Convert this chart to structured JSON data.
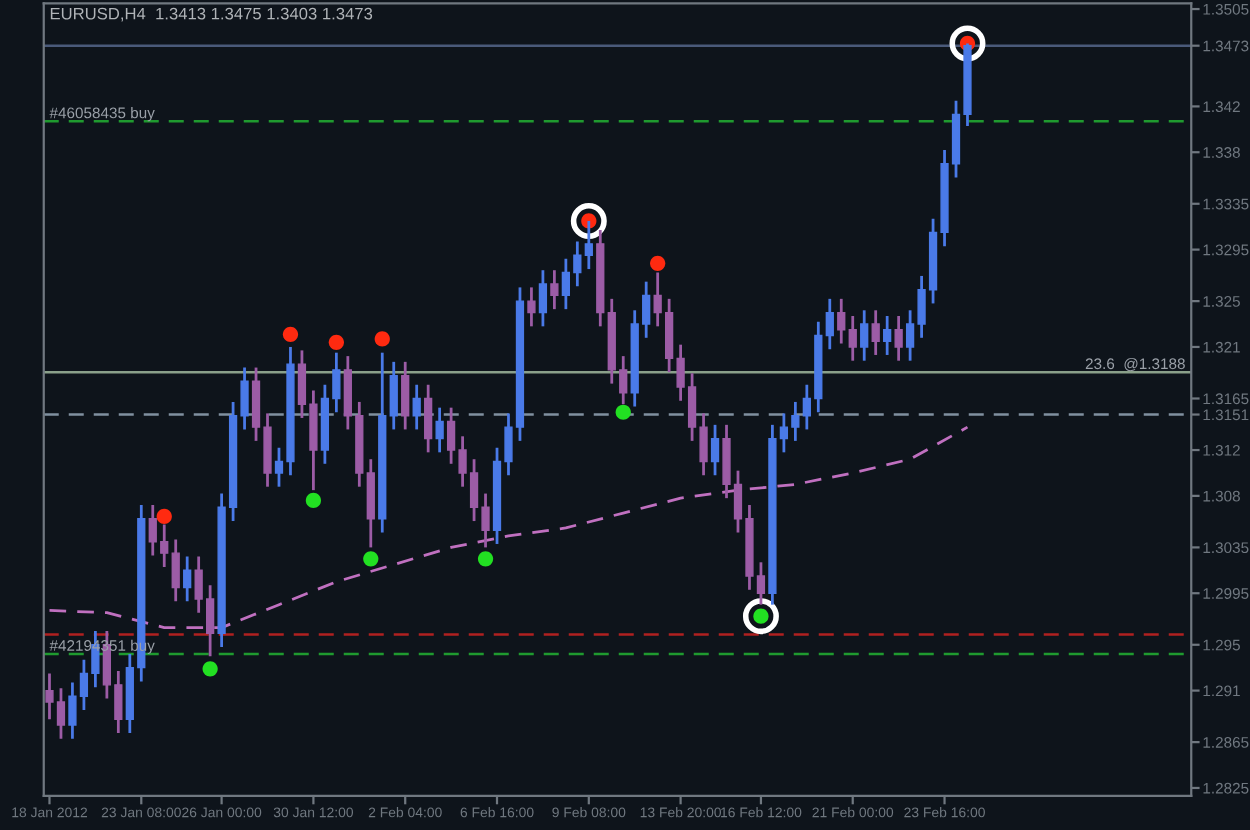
{
  "chart_data": {
    "type": "candlestick",
    "title": "EURUSD,H4  1.3413 1.3475 1.3403 1.3473",
    "categories": [
      "18 Jan 2012",
      null,
      null,
      null,
      null,
      null,
      null,
      null,
      "23 Jan 08:00",
      null,
      null,
      null,
      null,
      null,
      null,
      "26 Jan 00:00",
      null,
      null,
      null,
      null,
      null,
      null,
      null,
      "30 Jan 12:00",
      null,
      null,
      null,
      null,
      null,
      null,
      null,
      "2 Feb 04:00",
      null,
      null,
      null,
      null,
      null,
      null,
      null,
      "6 Feb 16:00",
      null,
      null,
      null,
      null,
      null,
      null,
      null,
      "9 Feb 08:00",
      null,
      null,
      null,
      null,
      null,
      null,
      null,
      "13 Feb 20:00",
      null,
      null,
      null,
      null,
      null,
      null,
      "16 Feb 12:00",
      null,
      null,
      null,
      null,
      null,
      null,
      null,
      "21 Feb 00:00",
      null,
      null,
      null,
      null,
      null,
      null,
      null,
      "23 Feb 16:00",
      null,
      null,
      null,
      null,
      null,
      null,
      null,
      null,
      null,
      null,
      null,
      null,
      null,
      null,
      null,
      null,
      null,
      null,
      null,
      null,
      null
    ],
    "ohlc": [
      [
        1.291,
        1.2925,
        1.2885,
        1.29
      ],
      [
        1.29,
        1.2912,
        1.2868,
        1.288
      ],
      [
        1.288,
        1.2917,
        1.2868,
        1.2905
      ],
      [
        1.2905,
        1.2937,
        1.2893,
        1.2925
      ],
      [
        1.2925,
        1.2962,
        1.2913,
        1.295
      ],
      [
        1.295,
        1.2962,
        1.2903,
        1.2915
      ],
      [
        1.2915,
        1.2927,
        1.2873,
        1.2885
      ],
      [
        1.2885,
        1.2942,
        1.2873,
        1.293
      ],
      [
        1.293,
        1.3072,
        1.2918,
        1.306
      ],
      [
        1.306,
        1.3072,
        1.3028,
        1.304
      ],
      [
        1.304,
        1.3055,
        1.3018,
        1.303
      ],
      [
        1.303,
        1.3042,
        1.2988,
        1.3
      ],
      [
        1.3,
        1.3027,
        1.2988,
        1.3015
      ],
      [
        1.3015,
        1.3027,
        1.2978,
        1.299
      ],
      [
        1.299,
        1.3002,
        1.294,
        1.296
      ],
      [
        1.296,
        1.3082,
        1.2948,
        1.307
      ],
      [
        1.307,
        1.3162,
        1.3058,
        1.315
      ],
      [
        1.315,
        1.3192,
        1.3138,
        1.318
      ],
      [
        1.318,
        1.3192,
        1.3128,
        1.314
      ],
      [
        1.314,
        1.3152,
        1.3088,
        1.31
      ],
      [
        1.31,
        1.3122,
        1.3088,
        1.311
      ],
      [
        1.311,
        1.321,
        1.3098,
        1.3195
      ],
      [
        1.3195,
        1.3207,
        1.3148,
        1.316
      ],
      [
        1.316,
        1.3172,
        1.3085,
        1.312
      ],
      [
        1.312,
        1.3177,
        1.3108,
        1.3165
      ],
      [
        1.3165,
        1.3205,
        1.3153,
        1.319
      ],
      [
        1.319,
        1.3202,
        1.3138,
        1.315
      ],
      [
        1.315,
        1.3162,
        1.3088,
        1.31
      ],
      [
        1.31,
        1.3112,
        1.3035,
        1.306
      ],
      [
        1.306,
        1.3205,
        1.3048,
        1.315
      ],
      [
        1.315,
        1.3197,
        1.3138,
        1.3185
      ],
      [
        1.3185,
        1.3197,
        1.3138,
        1.315
      ],
      [
        1.315,
        1.3177,
        1.3138,
        1.3165
      ],
      [
        1.3165,
        1.3177,
        1.3118,
        1.313
      ],
      [
        1.313,
        1.3157,
        1.3118,
        1.3145
      ],
      [
        1.3145,
        1.3157,
        1.3108,
        1.312
      ],
      [
        1.312,
        1.3132,
        1.3088,
        1.31
      ],
      [
        1.31,
        1.3112,
        1.3058,
        1.307
      ],
      [
        1.307,
        1.3082,
        1.3035,
        1.305
      ],
      [
        1.305,
        1.3122,
        1.3038,
        1.311
      ],
      [
        1.311,
        1.3152,
        1.3098,
        1.314
      ],
      [
        1.314,
        1.3262,
        1.3128,
        1.325
      ],
      [
        1.325,
        1.3262,
        1.3228,
        1.324
      ],
      [
        1.324,
        1.3277,
        1.3228,
        1.3265
      ],
      [
        1.3265,
        1.3277,
        1.3243,
        1.3255
      ],
      [
        1.3255,
        1.3287,
        1.3243,
        1.3275
      ],
      [
        1.3275,
        1.3302,
        1.3263,
        1.329
      ],
      [
        1.329,
        1.332,
        1.3278,
        1.33
      ],
      [
        1.33,
        1.3312,
        1.3228,
        1.324
      ],
      [
        1.324,
        1.3252,
        1.3178,
        1.319
      ],
      [
        1.319,
        1.3202,
        1.316,
        1.317
      ],
      [
        1.317,
        1.3242,
        1.3158,
        1.323
      ],
      [
        1.323,
        1.3267,
        1.3218,
        1.3255
      ],
      [
        1.3255,
        1.3275,
        1.3228,
        1.324
      ],
      [
        1.324,
        1.3252,
        1.3188,
        1.32
      ],
      [
        1.32,
        1.3212,
        1.3163,
        1.3175
      ],
      [
        1.3175,
        1.3187,
        1.3128,
        1.314
      ],
      [
        1.314,
        1.3152,
        1.3098,
        1.311
      ],
      [
        1.311,
        1.3142,
        1.3098,
        1.313
      ],
      [
        1.313,
        1.3142,
        1.3078,
        1.309
      ],
      [
        1.309,
        1.3102,
        1.3048,
        1.306
      ],
      [
        1.306,
        1.3072,
        1.2998,
        1.301
      ],
      [
        1.301,
        1.3022,
        1.2985,
        1.2995
      ],
      [
        1.2995,
        1.3142,
        1.2985,
        1.313
      ],
      [
        1.313,
        1.3152,
        1.3118,
        1.314
      ],
      [
        1.314,
        1.3162,
        1.3128,
        1.315
      ],
      [
        1.315,
        1.3177,
        1.3138,
        1.3165
      ],
      [
        1.3165,
        1.3232,
        1.3153,
        1.322
      ],
      [
        1.322,
        1.3252,
        1.3208,
        1.324
      ],
      [
        1.324,
        1.3252,
        1.3213,
        1.3225
      ],
      [
        1.3225,
        1.3237,
        1.3198,
        1.321
      ],
      [
        1.321,
        1.3242,
        1.3198,
        1.323
      ],
      [
        1.323,
        1.3242,
        1.3203,
        1.3215
      ],
      [
        1.3215,
        1.3237,
        1.3203,
        1.3225
      ],
      [
        1.3225,
        1.3237,
        1.3198,
        1.321
      ],
      [
        1.321,
        1.3242,
        1.3198,
        1.323
      ],
      [
        1.323,
        1.3272,
        1.3218,
        1.326
      ],
      [
        1.326,
        1.3322,
        1.3248,
        1.331
      ],
      [
        1.331,
        1.3382,
        1.3298,
        1.337
      ],
      [
        1.337,
        1.3425,
        1.3358,
        1.3413
      ],
      [
        1.3413,
        1.3475,
        1.3403,
        1.3473
      ],
      null,
      null,
      null,
      null,
      null,
      null,
      null,
      null,
      null,
      null,
      null,
      null,
      null,
      null,
      null,
      null,
      null,
      null,
      null
    ],
    "colors": [
      "#9c5ca6",
      "#9c5ca6",
      "#4a7ae8",
      "#4a7ae8",
      "#4a7ae8",
      "#9c5ca6",
      "#9c5ca6",
      "#4a7ae8",
      "#4a7ae8",
      "#9c5ca6",
      "#9c5ca6",
      "#9c5ca6",
      "#4a7ae8",
      "#9c5ca6",
      "#9c5ca6",
      "#4a7ae8",
      "#4a7ae8",
      "#4a7ae8",
      "#9c5ca6",
      "#9c5ca6",
      "#4a7ae8",
      "#4a7ae8",
      "#9c5ca6",
      "#9c5ca6",
      "#4a7ae8",
      "#4a7ae8",
      "#9c5ca6",
      "#9c5ca6",
      "#9c5ca6",
      "#4a7ae8",
      "#4a7ae8",
      "#9c5ca6",
      "#4a7ae8",
      "#9c5ca6",
      "#4a7ae8",
      "#9c5ca6",
      "#9c5ca6",
      "#9c5ca6",
      "#9c5ca6",
      "#4a7ae8",
      "#4a7ae8",
      "#4a7ae8",
      "#9c5ca6",
      "#4a7ae8",
      "#9c5ca6",
      "#4a7ae8",
      "#4a7ae8",
      "#4a7ae8",
      "#9c5ca6",
      "#9c5ca6",
      "#9c5ca6",
      "#4a7ae8",
      "#4a7ae8",
      "#9c5ca6",
      "#9c5ca6",
      "#9c5ca6",
      "#9c5ca6",
      "#9c5ca6",
      "#4a7ae8",
      "#9c5ca6",
      "#9c5ca6",
      "#9c5ca6",
      "#9c5ca6",
      "#4a7ae8",
      "#4a7ae8",
      "#4a7ae8",
      "#4a7ae8",
      "#4a7ae8",
      "#4a7ae8",
      "#9c5ca6",
      "#9c5ca6",
      "#4a7ae8",
      "#9c5ca6",
      "#4a7ae8",
      "#9c5ca6",
      "#4a7ae8",
      "#4a7ae8",
      "#4a7ae8",
      "#4a7ae8",
      "#4a7ae8",
      "#4a7ae8",
      null,
      null,
      null,
      null,
      null,
      null,
      null,
      null,
      null,
      null,
      null,
      null,
      null,
      null,
      null,
      null,
      null,
      null,
      null
    ],
    "series": [
      {
        "type": "line",
        "color": "#c070c0",
        "line_style": "dashed",
        "values": [
          1.298,
          null,
          null,
          null,
          null,
          1.2978,
          null,
          null,
          null,
          null,
          1.2965,
          null,
          null,
          null,
          null,
          1.2965,
          null,
          null,
          null,
          null,
          1.2985,
          null,
          null,
          null,
          null,
          1.3005,
          null,
          null,
          null,
          null,
          1.302,
          null,
          null,
          null,
          null,
          1.3035,
          null,
          null,
          null,
          null,
          1.3045,
          null,
          null,
          null,
          null,
          1.3052,
          null,
          null,
          null,
          null,
          1.3065,
          null,
          null,
          null,
          null,
          1.3078,
          null,
          null,
          null,
          null,
          1.3085,
          null,
          null,
          null,
          null,
          1.309,
          null,
          null,
          null,
          null,
          1.31,
          null,
          null,
          null,
          null,
          1.3112,
          null,
          null,
          null,
          null,
          1.314,
          null,
          null,
          null,
          null,
          null,
          null,
          null,
          null,
          null,
          null,
          null,
          null,
          null,
          null,
          null,
          null,
          null,
          null,
          null
        ]
      },
      {
        "type": "bubble",
        "color": "#ffffff",
        "values": [
          null,
          null,
          null,
          null,
          null,
          null,
          null,
          null,
          null,
          null,
          null,
          null,
          null,
          null,
          null,
          null,
          null,
          null,
          null,
          null,
          null,
          null,
          null,
          null,
          null,
          null,
          null,
          null,
          null,
          null,
          null,
          null,
          null,
          null,
          null,
          null,
          null,
          null,
          null,
          null,
          null,
          null,
          null,
          null,
          null,
          null,
          null,
          1.332,
          null,
          null,
          null,
          null,
          null,
          null,
          null,
          null,
          null,
          null,
          null,
          null,
          null,
          null,
          1.2975,
          null,
          null,
          null,
          null,
          null,
          null,
          null,
          null,
          null,
          null,
          null,
          null,
          null,
          null,
          null,
          null,
          null,
          1.3475,
          null,
          null,
          null,
          null,
          null,
          null,
          null,
          null,
          null,
          null,
          null,
          null,
          null,
          null,
          null,
          null,
          null,
          null,
          null
        ],
        "sizes": [
          null,
          null,
          null,
          null,
          null,
          null,
          null,
          null,
          null,
          null,
          null,
          null,
          null,
          null,
          null,
          null,
          null,
          null,
          null,
          null,
          null,
          null,
          null,
          null,
          null,
          null,
          null,
          null,
          null,
          null,
          null,
          null,
          null,
          null,
          null,
          null,
          null,
          null,
          null,
          null,
          null,
          null,
          null,
          null,
          null,
          null,
          null,
          1,
          null,
          null,
          null,
          null,
          null,
          null,
          null,
          null,
          null,
          null,
          null,
          null,
          null,
          null,
          1,
          null,
          null,
          null,
          null,
          null,
          null,
          null,
          null,
          null,
          null,
          null,
          null,
          null,
          null,
          null,
          null,
          null,
          1,
          null,
          null,
          null,
          null,
          null,
          null,
          null,
          null,
          null,
          null,
          null,
          null,
          null,
          null,
          null,
          null,
          null,
          null,
          null
        ]
      },
      {
        "type": "scatter",
        "color": "#ff2a10",
        "marker": "circle",
        "values": [
          null,
          null,
          null,
          null,
          null,
          null,
          null,
          null,
          null,
          null,
          1.3062,
          null,
          null,
          null,
          null,
          null,
          null,
          null,
          null,
          null,
          null,
          1.3221,
          null,
          null,
          null,
          1.3214,
          null,
          null,
          null,
          1.3217,
          null,
          null,
          null,
          null,
          null,
          null,
          null,
          null,
          null,
          null,
          null,
          null,
          null,
          null,
          null,
          null,
          null,
          1.332,
          null,
          null,
          null,
          null,
          null,
          1.3283,
          null,
          null,
          null,
          null,
          null,
          null,
          null,
          null,
          null,
          null,
          null,
          null,
          null,
          null,
          null,
          null,
          null,
          null,
          null,
          null,
          null,
          null,
          null,
          null,
          null,
          null,
          1.3475,
          null,
          null,
          null,
          null,
          null,
          null,
          null,
          null,
          null,
          null,
          null,
          null,
          null,
          null,
          null,
          null,
          null,
          null,
          null
        ]
      },
      {
        "type": "scatter",
        "color": "#22e022",
        "marker": "circle",
        "values": [
          null,
          null,
          null,
          null,
          null,
          null,
          null,
          null,
          null,
          null,
          null,
          null,
          null,
          null,
          1.2929,
          null,
          null,
          null,
          null,
          null,
          null,
          null,
          null,
          1.3076,
          null,
          null,
          null,
          null,
          1.3025,
          null,
          null,
          null,
          null,
          null,
          null,
          null,
          null,
          null,
          1.3025,
          null,
          null,
          null,
          null,
          null,
          null,
          null,
          null,
          null,
          null,
          null,
          1.3153,
          null,
          null,
          null,
          null,
          null,
          null,
          null,
          null,
          null,
          null,
          null,
          1.2975,
          null,
          null,
          null,
          null,
          null,
          null,
          null,
          null,
          null,
          null,
          null,
          null,
          null,
          null,
          null,
          null,
          null,
          null,
          null,
          null,
          null,
          null,
          null,
          null,
          null,
          null,
          null,
          null,
          null,
          null,
          null,
          null,
          null,
          null,
          null,
          null,
          null
        ]
      }
    ],
    "ref_lines": [
      {
        "axis": "y",
        "value": 1.3473,
        "color": "#4a5a7a",
        "line_style": "solid"
      },
      {
        "axis": "y",
        "value": 1.3407,
        "label": "#46058435 buy",
        "color": "#1f9a2f",
        "line_style": "dashed"
      },
      {
        "axis": "y",
        "value": 1.3188,
        "label": "23.6  @1.3188",
        "color": "#8aa08a",
        "line_style": "solid"
      },
      {
        "axis": "y",
        "value": 1.3151,
        "color": "#8090a0",
        "line_style": "dashed"
      },
      {
        "axis": "y",
        "value": 1.2959,
        "color": "#b02020",
        "line_style": "dashed"
      },
      {
        "axis": "y",
        "value": 1.2942,
        "label": "#42194351 buy",
        "color": "#1f9a2f",
        "line_style": "dashed"
      }
    ],
    "ylim": [
      1.2818,
      1.351
    ],
    "yticks": [
      1.3505,
      {
        "value": 1.3473,
        "label": "1.3473"
      },
      1.342,
      1.338,
      1.3335,
      1.3295,
      1.325,
      1.321,
      1.3165,
      {
        "value": 1.3151,
        "label": "1.3151"
      },
      1.312,
      1.308,
      1.3035,
      1.2995,
      1.295,
      1.291,
      1.2865,
      1.2825
    ]
  }
}
